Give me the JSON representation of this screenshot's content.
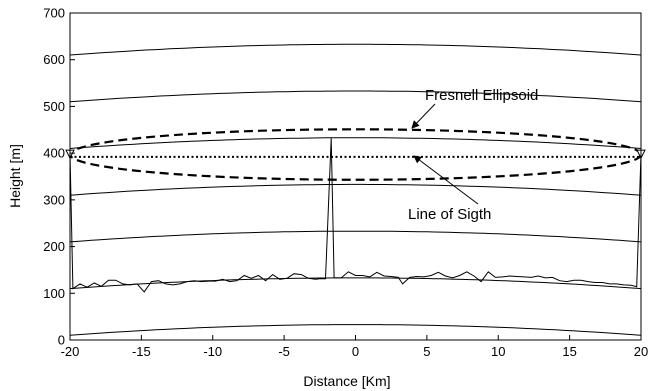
{
  "chart_data": {
    "type": "line",
    "title": "",
    "xlabel": "Distance [Km]",
    "ylabel": "Height [m]",
    "xlim": [
      -20,
      20
    ],
    "ylim": [
      0,
      700
    ],
    "xticks": [
      -20,
      -15,
      -10,
      -5,
      0,
      5,
      10,
      15,
      20
    ],
    "yticks": [
      0,
      100,
      200,
      300,
      400,
      500,
      600,
      700
    ],
    "grid": false,
    "earth_curves": {
      "base_heights": [
        10,
        110,
        210,
        310,
        410,
        510,
        610
      ],
      "bulge_m": 23,
      "color": "#000000"
    },
    "terrain": {
      "x": [
        -20,
        -19.8,
        -19.3,
        -18.8,
        -18.3,
        -17.8,
        -17.3,
        -16.8,
        -16.3,
        -15.8,
        -15.3,
        -14.8,
        -14.3,
        -13.8,
        -13.3,
        -12.8,
        -12.3,
        -11.8,
        -11.3,
        -10.8,
        -10.3,
        -9.8,
        -9.3,
        -8.8,
        -8.3,
        -7.8,
        -7.3,
        -6.8,
        -6.3,
        -5.8,
        -5.3,
        -4.8,
        -4.3,
        -3.8,
        -3.3,
        -2.8,
        -2.5,
        -2.1,
        -1.7,
        -1.5,
        -1,
        -0.5,
        0,
        0.5,
        1,
        1.5,
        2,
        2.5,
        3,
        3.3,
        3.8,
        4.3,
        4.8,
        5.3,
        5.8,
        6.3,
        6.8,
        7.3,
        7.8,
        8.3,
        8.8,
        9.3,
        9.8,
        10.3,
        10.8,
        11.3,
        11.8,
        12.3,
        12.8,
        13.3,
        13.8,
        14.3,
        14.8,
        15.3,
        15.8,
        16.3,
        16.8,
        17.3,
        17.8,
        18.3,
        18.8,
        19.3,
        19.7,
        20
      ],
      "y": [
        400,
        110,
        120,
        113,
        122,
        115,
        128,
        128,
        120,
        118,
        120,
        103,
        125,
        127,
        120,
        118,
        120,
        125,
        127,
        125,
        126,
        126,
        130,
        125,
        127,
        138,
        132,
        138,
        127,
        140,
        130,
        132,
        142,
        140,
        132,
        130,
        131,
        131,
        432,
        133,
        133,
        146,
        138,
        138,
        135,
        145,
        137,
        136,
        134,
        120,
        134,
        136,
        135,
        138,
        145,
        137,
        133,
        138,
        146,
        137,
        125,
        146,
        134,
        135,
        137,
        136,
        135,
        134,
        137,
        133,
        134,
        127,
        125,
        128,
        128,
        125,
        123,
        123,
        120,
        120,
        118,
        117,
        114,
        400
      ]
    },
    "line_of_sight": {
      "x": [
        -20,
        20
      ],
      "y": [
        392,
        392
      ]
    },
    "antennas": {
      "x": [
        -20,
        20
      ],
      "y": [
        400,
        400
      ]
    },
    "fresnel": {
      "center_height": 397,
      "semi_minor_m": 54
    },
    "annotations": [
      {
        "text": "Fresnell Ellipsoid",
        "points_to": "fresnel-ellipsoid"
      },
      {
        "text": "Line of Sigth",
        "points_to": "line-of-sight"
      }
    ]
  }
}
